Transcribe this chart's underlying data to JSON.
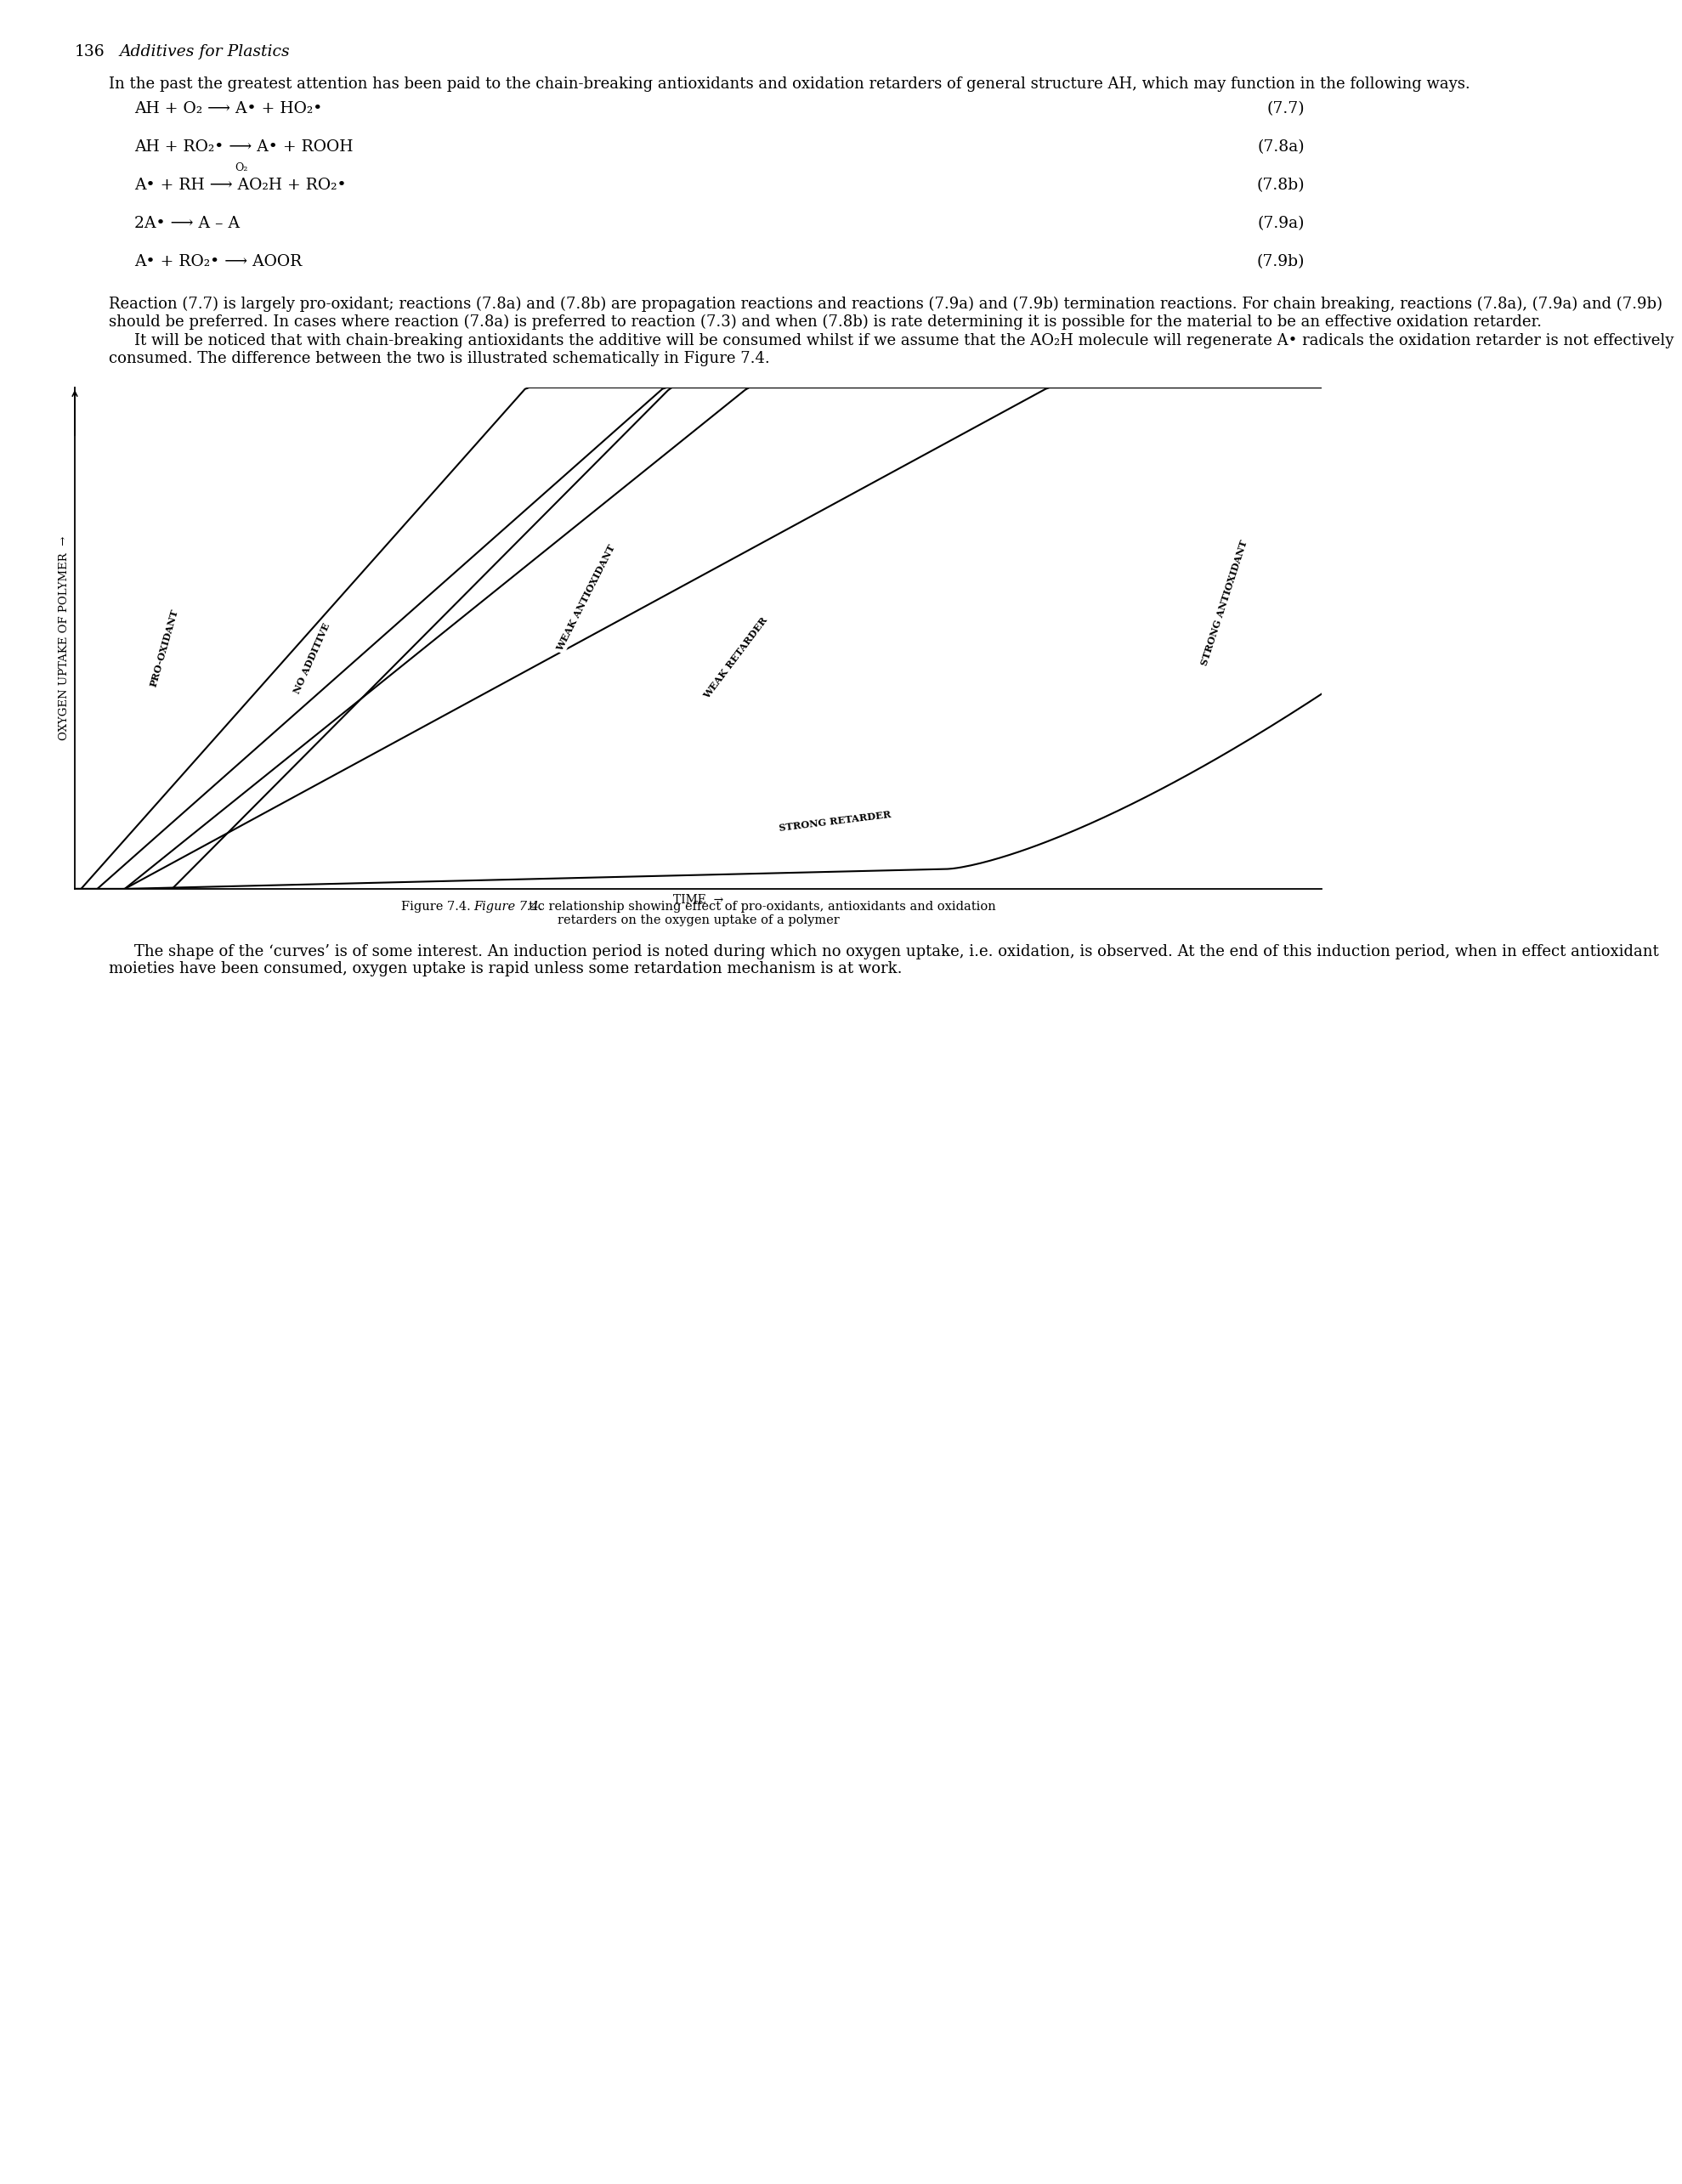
{
  "page_number": "136",
  "book_title": "Additives for Plastics",
  "para1": "In the past the greatest attention has been paid to the chain-breaking antioxidants and oxidation retarders of general structure AH, which may function in the following ways.",
  "equations": [
    {
      "lhs": "AH + O₂ ⟶ A• + HO₂•",
      "num": "(7.7)",
      "above": null
    },
    {
      "lhs": "AH + RO₂• ⟶ A• + ROOH",
      "num": "(7.8a)",
      "above": null
    },
    {
      "lhs": "A• + RH ⟶ AO₂H + RO₂•",
      "num": "(7.8b)",
      "above": "O₂"
    },
    {
      "lhs": "2A• ⟶ A – A",
      "num": "(7.9a)",
      "above": null
    },
    {
      "lhs": "A• + RO₂• ⟶ AOOR",
      "num": "(7.9b)",
      "above": null
    }
  ],
  "para2": "Reaction (7.7) is largely pro-oxidant; reactions (7.8a) and (7.8b) are propagation reactions and reactions (7.9a) and (7.9b) termination reactions. For chain breaking, reactions (7.8a), (7.9a) and (7.9b) should be preferred. In cases where reaction (7.8a) is preferred to reaction (7.3) and when (7.8b) is rate determining it is possible for the material to be an effective oxidation retarder.",
  "para3": "It will be noticed that with chain-breaking antioxidants the additive will be consumed whilst if we assume that the AO₂H molecule will regenerate A• radicals the oxidation retarder is not effectively consumed. The difference between the two is illustrated schematically in Figure 7.4.",
  "cap_line1": "Figure 7.4.  Schematic relationship showing effect of pro-oxidants, antioxidants and oxidation",
  "cap_line2": "retarders on the oxygen uptake of a polymer",
  "cap_italic": "Figure 7.4.",
  "para4": "The shape of the ‘curves’ is of some interest. An induction period is noted during which no oxygen uptake, i.e. oxidation, is observed. At the end of this induction period, when in effect antioxidant moieties have been consumed, oxygen uptake is rapid unless some retardation mechanism is at work.",
  "ylabel": "OXYGEN UPTAKE OF POLYMER",
  "xlabel": "TIME",
  "curve_pro_oxidant_ind": 0.05,
  "curve_pro_oxidant_slope": 2.8,
  "curve_no_additive_ind": 0.18,
  "curve_no_additive_slope": 2.2,
  "curve_weak_antioxidant_ind": 0.4,
  "curve_weak_antioxidant_slope": 2.0,
  "curve_weak_retarder_ind": 0.4,
  "curve_weak_retarder_slope": 1.35,
  "curve_strong_antioxidant_ind": 0.78,
  "curve_strong_antioxidant_slope": 2.5,
  "label_pro_oxidant": "PRO-OXIDANT",
  "label_no_additive": "NO ADDITIVE",
  "label_weak_antioxidant": "WEAK ANTIOXIDANT",
  "label_weak_retarder": "WEAK RETARDER",
  "label_strong_retarder": "STRONG RETARDER",
  "label_strong_antioxidant": "STRONG ANTIOXIDANT",
  "bg_color": "#ffffff",
  "text_color": "#000000",
  "body_fontsize": 13.0,
  "eq_fontsize": 13.5,
  "title_fontsize": 13.5,
  "cap_fontsize": 10.5,
  "lw": 1.5
}
